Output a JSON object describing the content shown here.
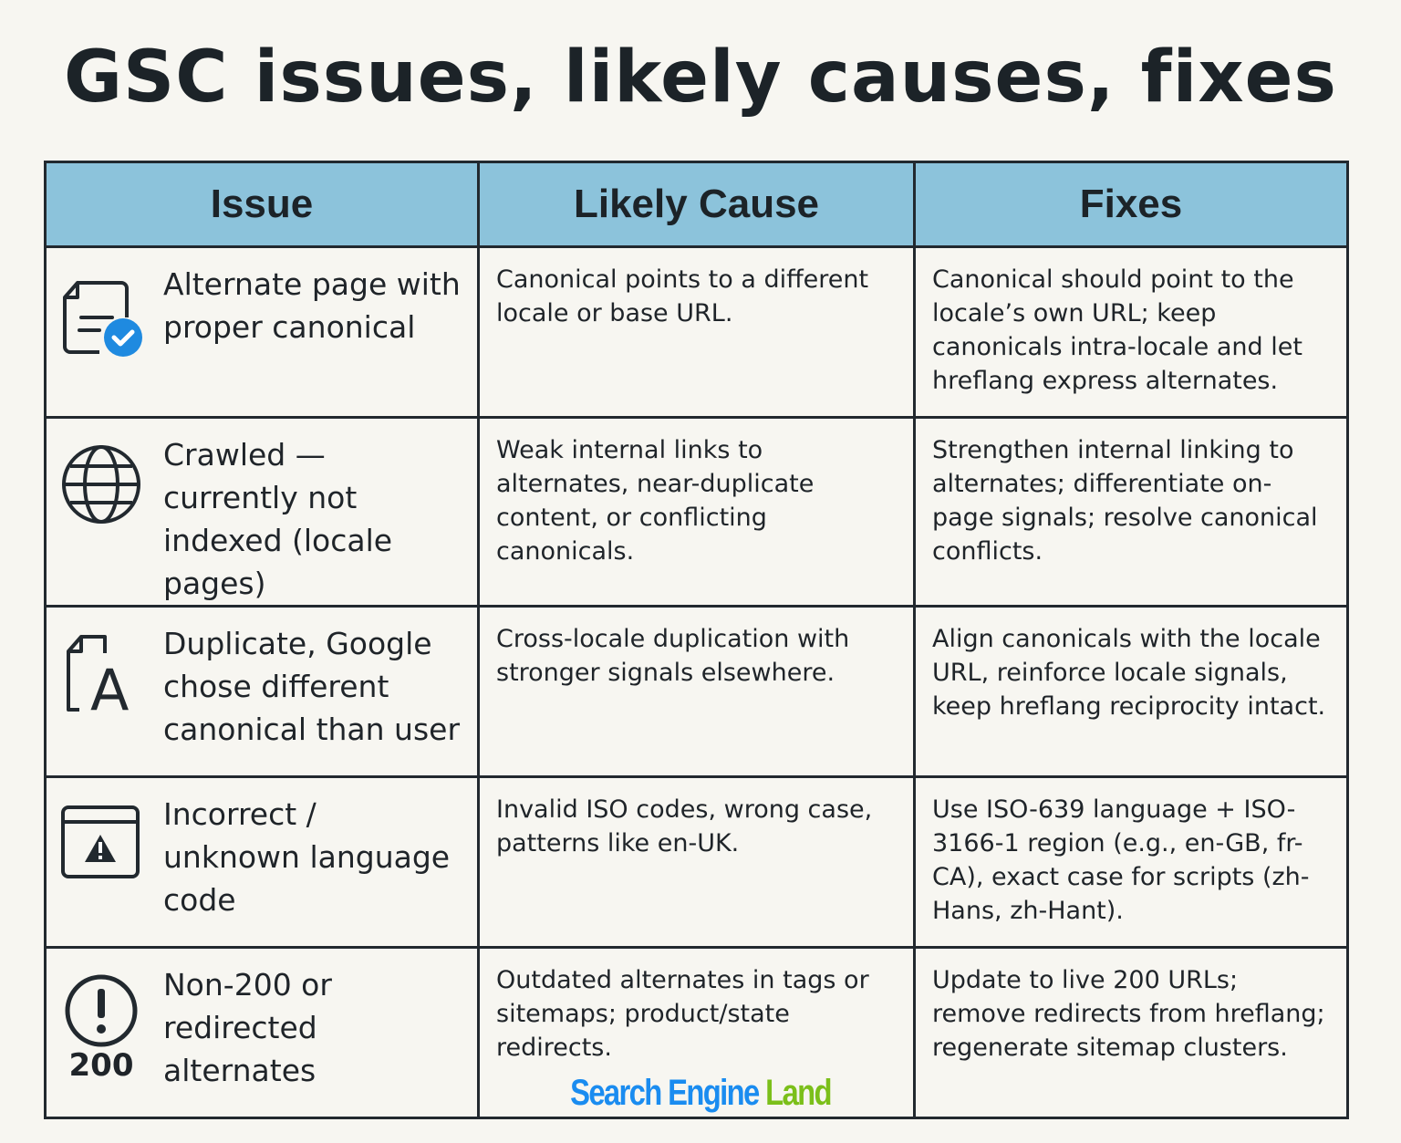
{
  "title": "GSC issues, likely causes, fixes",
  "table": {
    "headers": [
      "Issue",
      "Likely Cause",
      "Fixes"
    ],
    "rows": [
      {
        "icon": "document-check-icon",
        "issue": "Alternate page with proper canonical",
        "cause": "Canonical points to a different locale or base URL.",
        "fix": "Canonical should point to the locale’s own URL; keep canonicals intra-locale and let hreflang express alternates."
      },
      {
        "icon": "globe-icon",
        "issue": "Crawled — currently not indexed (locale pages)",
        "cause": "Weak internal links to alternates, near-duplicate content, or conflicting canonicals.",
        "fix": "Strengthen internal linking to alternates; differentiate on-page signals; resolve canonical conflicts."
      },
      {
        "icon": "document-letter-a-icon",
        "issue": "Duplicate, Google chose different canonical than user",
        "cause": "Cross-locale duplication with stronger signals elsewhere.",
        "fix": "Align canonicals with the locale URL, reinforce locale signals, keep hreflang reciprocity intact."
      },
      {
        "icon": "browser-warning-icon",
        "issue": "Incorrect / unknown language code",
        "cause": "Invalid ISO codes, wrong case, patterns like en-UK.",
        "fix": "Use ISO-639 language + ISO-3166-1 region (e.g., en-GB, fr-CA), exact case for scripts (zh-Hans, zh-Hant)."
      },
      {
        "icon": "exclamation-circle-icon",
        "icon_label": "200",
        "issue": "Non-200 or redirected alternates",
        "cause": "Outdated alternates in tags or sitemaps; product/state redirects.",
        "fix": "Update to live 200 URLs; remove redirects from hreflang; regenerate sitemap clusters."
      }
    ]
  },
  "logo": {
    "part1": "Search Engine",
    "part2": "Land"
  },
  "colors": {
    "header": "#8cc3db",
    "background": "#f7f6f1",
    "check": "#1f8ae0",
    "logo_blue": "#1a8cf0",
    "logo_green": "#7bbf1a"
  }
}
